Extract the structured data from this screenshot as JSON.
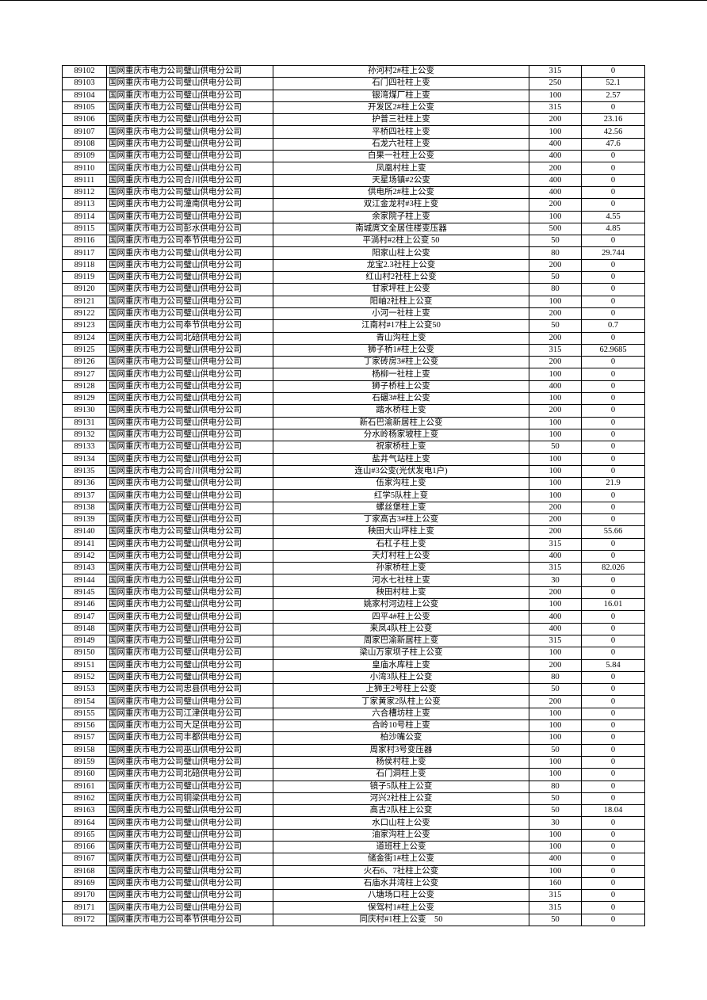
{
  "table": {
    "rows": [
      [
        "89102",
        "国网重庆市电力公司璧山供电分公司",
        "孙河村2#柱上公变",
        "315",
        "0"
      ],
      [
        "89103",
        "国网重庆市电力公司璧山供电分公司",
        "石门四社柱上变",
        "250",
        "52.1"
      ],
      [
        "89104",
        "国网重庆市电力公司璧山供电分公司",
        "银湾煤厂柱上变",
        "100",
        "2.57"
      ],
      [
        "89105",
        "国网重庆市电力公司璧山供电分公司",
        "开发区2#柱上公变",
        "315",
        "0"
      ],
      [
        "89106",
        "国网重庆市电力公司璧山供电分公司",
        "护普三社柱上变",
        "200",
        "23.16"
      ],
      [
        "89107",
        "国网重庆市电力公司璧山供电分公司",
        "平桥四社柱上变",
        "100",
        "42.56"
      ],
      [
        "89108",
        "国网重庆市电力公司璧山供电分公司",
        "石龙六社柱上变",
        "400",
        "47.6"
      ],
      [
        "89109",
        "国网重庆市电力公司璧山供电分公司",
        "白果一社柱上公变",
        "400",
        "0"
      ],
      [
        "89110",
        "国网重庆市电力公司璧山供电分公司",
        "凤凰村柱上变",
        "200",
        "0"
      ],
      [
        "89111",
        "国网重庆市电力公司合川供电分公司",
        "天星场镇#2公变",
        "400",
        "0"
      ],
      [
        "89112",
        "国网重庆市电力公司璧山供电分公司",
        "供电所2#柱上公变",
        "400",
        "0"
      ],
      [
        "89113",
        "国网重庆市电力公司潼南供电分公司",
        "双江金龙村#3柱上变",
        "200",
        "0"
      ],
      [
        "89114",
        "国网重庆市电力公司璧山供电分公司",
        "余家院子柱上变",
        "100",
        "4.55"
      ],
      [
        "89115",
        "国网重庆市电力公司彭水供电分公司",
        "南城庹文全居住楼变压器",
        "500",
        "4.85"
      ],
      [
        "89116",
        "国网重庆市电力公司奉节供电分公司",
        "平淌村#2柱上公变 50",
        "50",
        "0"
      ],
      [
        "89117",
        "国网重庆市电力公司璧山供电分公司",
        "阳家山柱上公变",
        "80",
        "29.744"
      ],
      [
        "89118",
        "国网重庆市电力公司璧山供电分公司",
        "龙宝2.3社柱上公变",
        "200",
        "0"
      ],
      [
        "89119",
        "国网重庆市电力公司璧山供电分公司",
        "红山村2社柱上公变",
        "50",
        "0"
      ],
      [
        "89120",
        "国网重庆市电力公司璧山供电分公司",
        "甘家坪柱上公变",
        "80",
        "0"
      ],
      [
        "89121",
        "国网重庆市电力公司璧山供电分公司",
        "阳岫2社柱上公变",
        "100",
        "0"
      ],
      [
        "89122",
        "国网重庆市电力公司璧山供电分公司",
        "小河一社柱上变",
        "200",
        "0"
      ],
      [
        "89123",
        "国网重庆市电力公司奉节供电分公司",
        "江南村#17柱上公变50",
        "50",
        "0.7"
      ],
      [
        "89124",
        "国网重庆市电力公司北碚供电分公司",
        "青山沟柱上变",
        "200",
        "0"
      ],
      [
        "89125",
        "国网重庆市电力公司璧山供电分公司",
        "狮子桥1#柱上公变",
        "315",
        "62.9685"
      ],
      [
        "89126",
        "国网重庆市电力公司璧山供电分公司",
        "丁家砖房3#柱上公变",
        "200",
        "0"
      ],
      [
        "89127",
        "国网重庆市电力公司璧山供电分公司",
        "杨柳一社柱上变",
        "100",
        "0"
      ],
      [
        "89128",
        "国网重庆市电力公司璧山供电分公司",
        "狮子桥柱上公变",
        "400",
        "0"
      ],
      [
        "89129",
        "国网重庆市电力公司璧山供电分公司",
        "石碾3#柱上公变",
        "100",
        "0"
      ],
      [
        "89130",
        "国网重庆市电力公司璧山供电分公司",
        "踏水桥柱上变",
        "200",
        "0"
      ],
      [
        "89131",
        "国网重庆市电力公司璧山供电分公司",
        "新石巴渝新居柱上公变",
        "100",
        "0"
      ],
      [
        "89132",
        "国网重庆市电力公司璧山供电分公司",
        "分水岭杨家坡柱上变",
        "100",
        "0"
      ],
      [
        "89133",
        "国网重庆市电力公司璧山供电分公司",
        "祝家桥柱上变",
        "50",
        "0"
      ],
      [
        "89134",
        "国网重庆市电力公司璧山供电分公司",
        "盐井气站柱上变",
        "100",
        "0"
      ],
      [
        "89135",
        "国网重庆市电力公司合川供电分公司",
        "连山#3公变(光伏发电1户)",
        "100",
        "0"
      ],
      [
        "89136",
        "国网重庆市电力公司璧山供电分公司",
        "伍家沟柱上变",
        "100",
        "21.9"
      ],
      [
        "89137",
        "国网重庆市电力公司璧山供电分公司",
        "红学5队柱上变",
        "100",
        "0"
      ],
      [
        "89138",
        "国网重庆市电力公司璧山供电分公司",
        "螺丝堡柱上变",
        "200",
        "0"
      ],
      [
        "89139",
        "国网重庆市电力公司璧山供电分公司",
        "丁家高古3#柱上公变",
        "200",
        "0"
      ],
      [
        "89140",
        "国网重庆市电力公司璧山供电分公司",
        "秧田大山坪柱上变",
        "200",
        "55.66"
      ],
      [
        "89141",
        "国网重庆市电力公司璧山供电分公司",
        "石杠子柱上变",
        "315",
        "0"
      ],
      [
        "89142",
        "国网重庆市电力公司璧山供电分公司",
        "天灯村柱上公变",
        "400",
        "0"
      ],
      [
        "89143",
        "国网重庆市电力公司璧山供电分公司",
        "孙家桥柱上变",
        "315",
        "82.026"
      ],
      [
        "89144",
        "国网重庆市电力公司璧山供电分公司",
        "河水七社柱上变",
        "30",
        "0"
      ],
      [
        "89145",
        "国网重庆市电力公司璧山供电分公司",
        "秧田村柱上变",
        "200",
        "0"
      ],
      [
        "89146",
        "国网重庆市电力公司璧山供电分公司",
        "姚家村河边柱上公变",
        "100",
        "16.01"
      ],
      [
        "89147",
        "国网重庆市电力公司璧山供电分公司",
        "四平4#柱上公变",
        "400",
        "0"
      ],
      [
        "89148",
        "国网重庆市电力公司璧山供电分公司",
        "来凤4队柱上公变",
        "400",
        "0"
      ],
      [
        "89149",
        "国网重庆市电力公司璧山供电分公司",
        "周家巴渝新居柱上变",
        "315",
        "0"
      ],
      [
        "89150",
        "国网重庆市电力公司璧山供电分公司",
        "梁山万家坝子柱上公变",
        "100",
        "0"
      ],
      [
        "89151",
        "国网重庆市电力公司璧山供电分公司",
        "皇庙水库柱上变",
        "200",
        "5.84"
      ],
      [
        "89152",
        "国网重庆市电力公司璧山供电分公司",
        "小湾3队柱上公变",
        "80",
        "0"
      ],
      [
        "89153",
        "国网重庆市电力公司忠县供电分公司",
        "上狮王2号柱上公变",
        "50",
        "0"
      ],
      [
        "89154",
        "国网重庆市电力公司璧山供电分公司",
        "丁家黄家2队柱上公变",
        "200",
        "0"
      ],
      [
        "89155",
        "国网重庆市电力公司江津供电分公司",
        "六合槽坊柱上变",
        "100",
        "0"
      ],
      [
        "89156",
        "国网重庆市电力公司大足供电分公司",
        "合岭10号柱上变",
        "100",
        "0"
      ],
      [
        "89157",
        "国网重庆市电力公司丰都供电分公司",
        "柏沙嘴公变",
        "100",
        "0"
      ],
      [
        "89158",
        "国网重庆市电力公司巫山供电分公司",
        "周家村3号变压器",
        "50",
        "0"
      ],
      [
        "89159",
        "国网重庆市电力公司璧山供电分公司",
        "杨侯村柱上变",
        "100",
        "0"
      ],
      [
        "89160",
        "国网重庆市电力公司北碚供电分公司",
        "石门洞柱上变",
        "100",
        "0"
      ],
      [
        "89161",
        "国网重庆市电力公司璧山供电分公司",
        "镜子5队柱上公变",
        "80",
        "0"
      ],
      [
        "89162",
        "国网重庆市电力公司铜梁供电分公司",
        "河兴2社柱上公变",
        "50",
        "0"
      ],
      [
        "89163",
        "国网重庆市电力公司璧山供电分公司",
        "高古2队柱上公变",
        "50",
        "18.04"
      ],
      [
        "89164",
        "国网重庆市电力公司璧山供电分公司",
        "水口山柱上公变",
        "30",
        "0"
      ],
      [
        "89165",
        "国网重庆市电力公司璧山供电分公司",
        "油家沟柱上公变",
        "100",
        "0"
      ],
      [
        "89166",
        "国网重庆市电力公司璧山供电分公司",
        "道班柱上公变",
        "100",
        "0"
      ],
      [
        "89167",
        "国网重庆市电力公司璧山供电分公司",
        "储金街1#柱上公变",
        "400",
        "0"
      ],
      [
        "89168",
        "国网重庆市电力公司璧山供电分公司",
        "火石6、7社柱上公变",
        "100",
        "0"
      ],
      [
        "89169",
        "国网重庆市电力公司璧山供电分公司",
        "石庙水井湾柱上公变",
        "160",
        "0"
      ],
      [
        "89170",
        "国网重庆市电力公司璧山供电分公司",
        "八塘场口柱上公变",
        "315",
        "0"
      ],
      [
        "89171",
        "国网重庆市电力公司璧山供电分公司",
        "保驾村1#柱上公变",
        "315",
        "0"
      ],
      [
        "89172",
        "国网重庆市电力公司奉节供电分公司",
        "同庆村#1柱上公变　50",
        "50",
        "0"
      ]
    ]
  }
}
